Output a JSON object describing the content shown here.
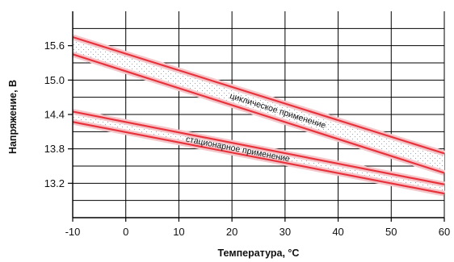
{
  "chart_data": {
    "type": "line",
    "title": "",
    "xlabel": "Температура, °C",
    "ylabel": "Напряжение, В",
    "xlim": [
      -10,
      60
    ],
    "ylim": [
      12.6,
      16.2
    ],
    "x_ticks": [
      -10,
      0,
      10,
      20,
      30,
      40,
      50,
      60
    ],
    "y_ticks": [
      13.2,
      13.8,
      14.4,
      15.0,
      15.6
    ],
    "x_tick_labels": [
      "-10",
      "0",
      "10",
      "20",
      "30",
      "40",
      "50",
      "60"
    ],
    "y_tick_labels": [
      "13.2",
      "13.8",
      "14.4",
      "15.0",
      "15.6"
    ],
    "grid": true,
    "line_color": "#e8323c",
    "band_fill_color": "#f4c6c9",
    "bands": [
      {
        "label": "циклическое применение",
        "upper": {
          "x": [
            -10,
            60
          ],
          "y": [
            15.75,
            13.72
          ]
        },
        "lower": {
          "x": [
            -10,
            60
          ],
          "y": [
            15.45,
            13.38
          ]
        }
      },
      {
        "label": "стационарное применение",
        "upper": {
          "x": [
            -10,
            60
          ],
          "y": [
            14.45,
            13.18
          ]
        },
        "lower": {
          "x": [
            -10,
            60
          ],
          "y": [
            14.27,
            13.02
          ]
        }
      }
    ]
  }
}
